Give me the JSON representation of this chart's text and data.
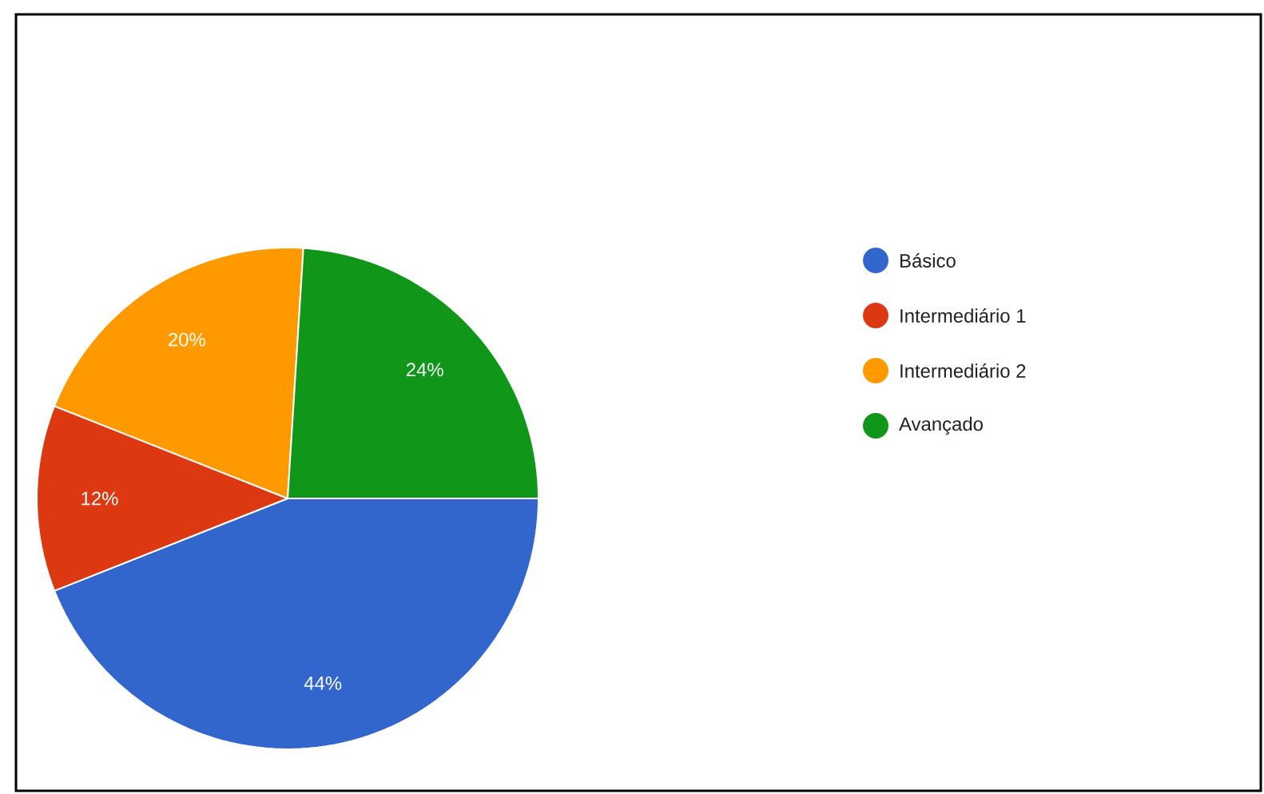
{
  "chart_data": {
    "type": "pie",
    "categories": [
      "Básico",
      "Intermediário 1",
      "Intermediário 2",
      "Avançado"
    ],
    "values": [
      44,
      12,
      20,
      24
    ],
    "colors": [
      "#3366cc",
      "#dc3912",
      "#ff9900",
      "#109618"
    ],
    "value_labels": [
      "44%",
      "12%",
      "20%",
      "24%"
    ],
    "legend": "right"
  }
}
